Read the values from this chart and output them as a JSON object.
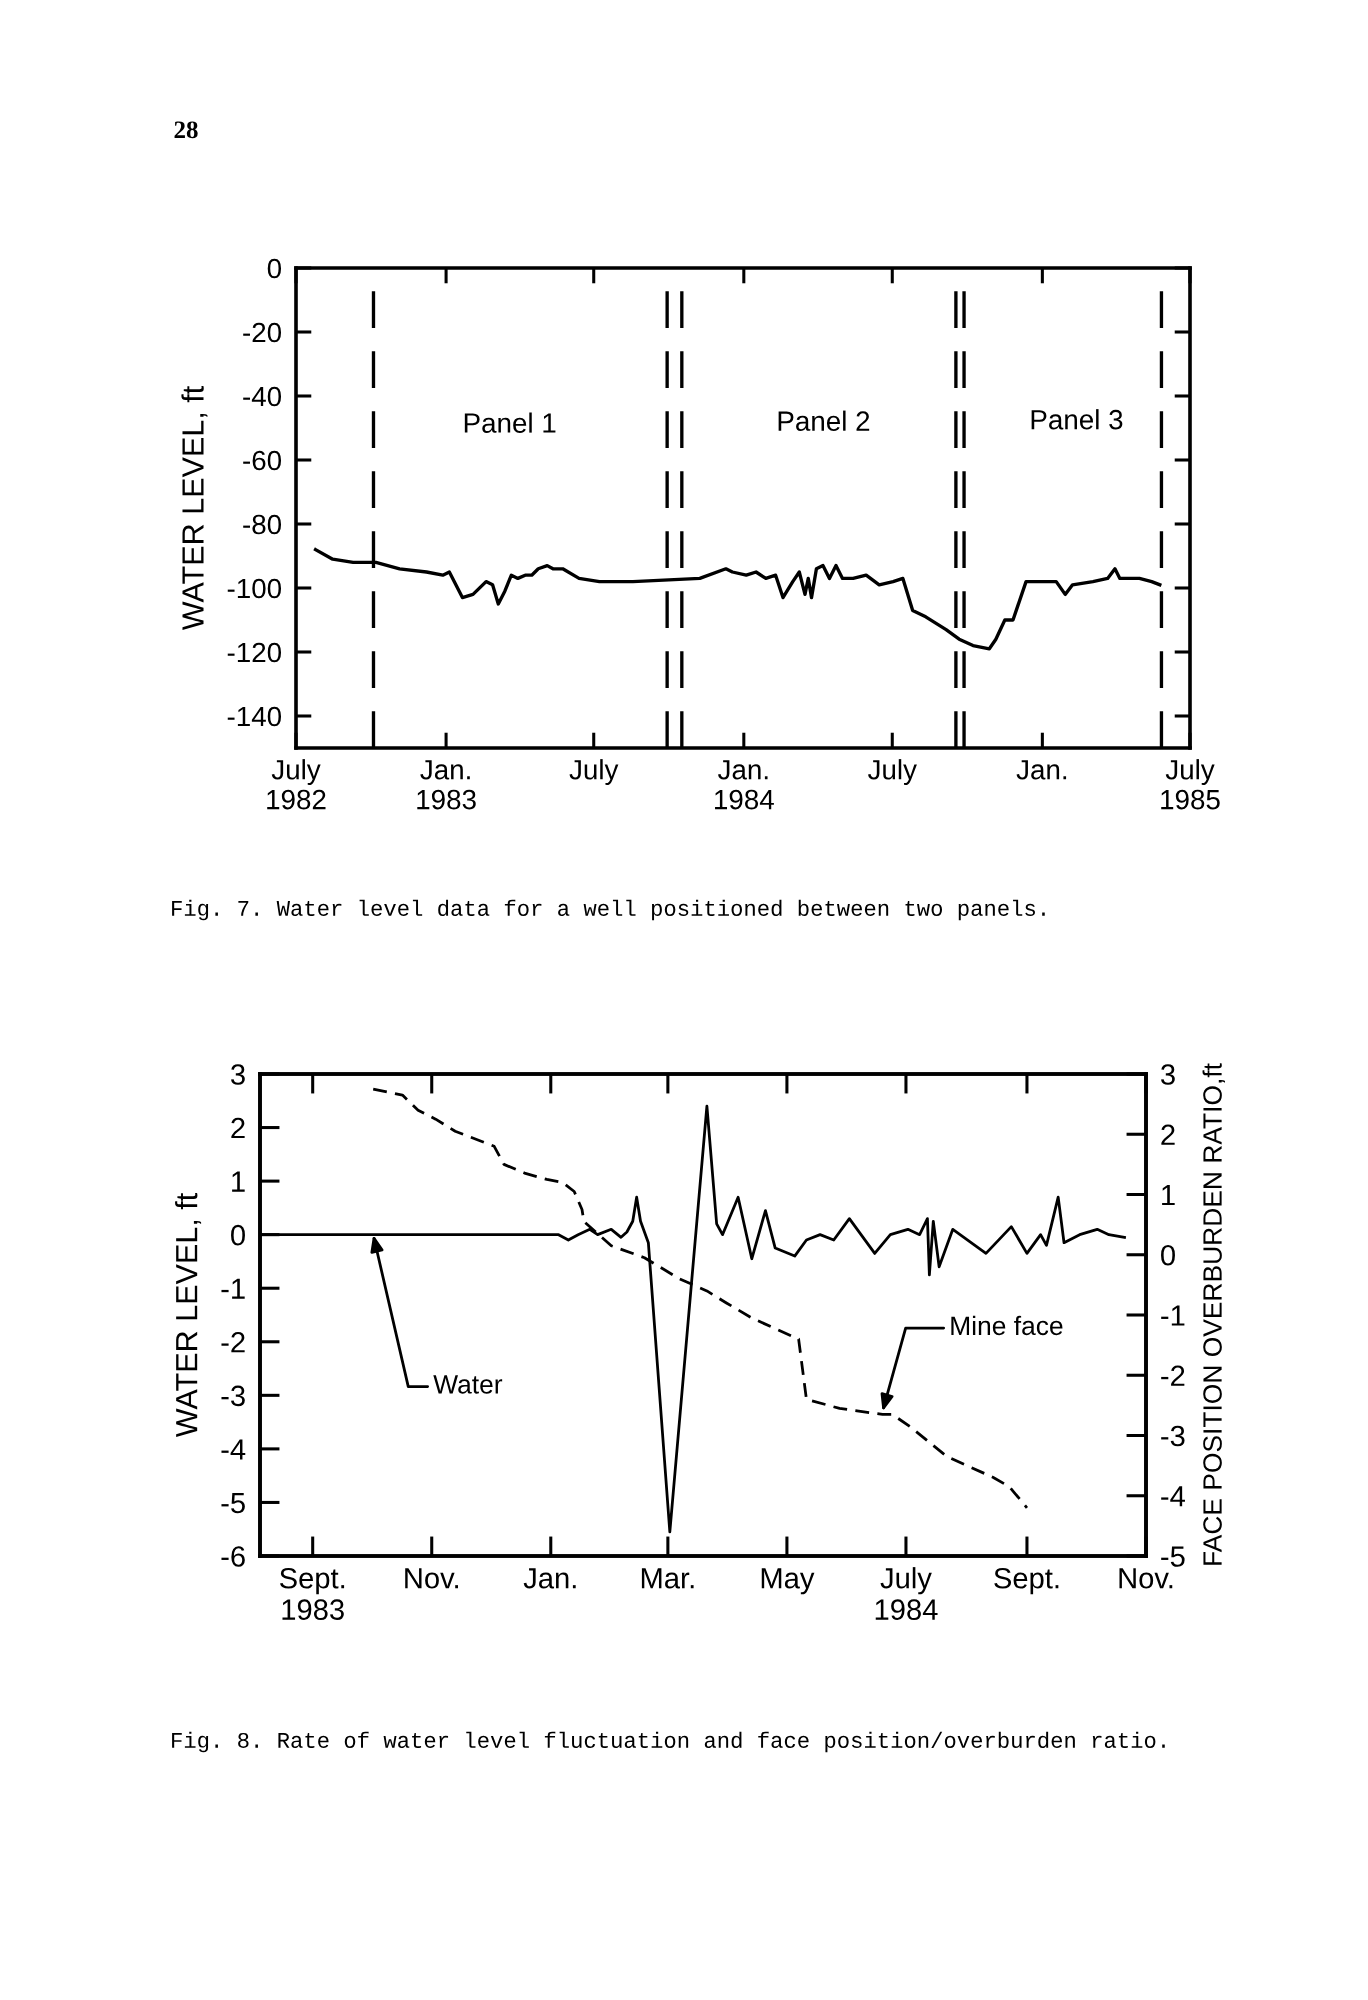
{
  "chart_data": [
    {
      "type": "line",
      "ylabel": "WATER LEVEL, ft",
      "xlim": [
        "1982-07-01",
        "1985-07-01"
      ],
      "xticks": [
        {
          "value": "1982-07-01",
          "label": "July\n1982"
        },
        {
          "value": "1983-01-01",
          "label": "Jan.\n1983"
        },
        {
          "value": "1983-07-01",
          "label": "July"
        },
        {
          "value": "1984-01-01",
          "label": "Jan.\n1984"
        },
        {
          "value": "1984-07-01",
          "label": "July"
        },
        {
          "value": "1985-01-01",
          "label": "Jan."
        },
        {
          "value": "1985-07-01",
          "label": "July\n1985"
        }
      ],
      "ylim": [
        -150,
        0
      ],
      "yticks": [
        0,
        -20,
        -40,
        -60,
        -80,
        -100,
        -120,
        -140
      ],
      "series": [
        {
          "color": "#000000",
          "line_style": "solid",
          "x": [
            "1982-07-25",
            "1982-08-15",
            "1982-09-09",
            "1982-10-07",
            "1982-11-05",
            "1982-12-08",
            "1982-12-28",
            "1983-01-05",
            "1983-01-21",
            "1983-02-03",
            "1983-02-19",
            "1983-02-27",
            "1983-03-06",
            "1983-03-14",
            "1983-03-22",
            "1983-03-30",
            "1983-04-08",
            "1983-04-16",
            "1983-04-24",
            "1983-05-05",
            "1983-05-12",
            "1983-05-24",
            "1983-06-13",
            "1983-07-08",
            "1983-08-18",
            "1983-11-08",
            "1983-12-10",
            "1983-12-18",
            "1984-01-04",
            "1984-01-16",
            "1984-01-28",
            "1984-02-09",
            "1984-02-18",
            "1984-03-01",
            "1984-03-09",
            "1984-03-16",
            "1984-03-20",
            "1984-03-24",
            "1984-03-30",
            "1984-04-07",
            "1984-04-15",
            "1984-04-23",
            "1984-05-01",
            "1984-05-14",
            "1984-05-30",
            "1984-06-15",
            "1984-07-02",
            "1984-07-14",
            "1984-07-26",
            "1984-08-11",
            "1984-09-05",
            "1984-09-21",
            "1984-10-08",
            "1984-10-28",
            "1984-11-05",
            "1984-11-16",
            "1984-11-26",
            "1984-11-30",
            "1984-12-12",
            "1984-12-20",
            "1985-01-18",
            "1985-01-29",
            "1985-02-07",
            "1985-03-04",
            "1985-03-22",
            "1985-03-31",
            "1985-04-06",
            "1985-04-18",
            "1985-04-30",
            "1985-05-15",
            "1985-05-25"
          ],
          "values": [
            -88,
            -91,
            -92,
            -92,
            -94,
            -95,
            -96,
            -95,
            -103,
            -102,
            -98,
            -99,
            -105,
            -101,
            -96,
            -97,
            -96,
            -96,
            -94,
            -93,
            -94,
            -94,
            -97,
            -98,
            -98,
            -97,
            -94,
            -95,
            -96,
            -95,
            -97,
            -96,
            -103,
            -98,
            -95,
            -102,
            -97,
            -103,
            -94,
            -93,
            -97,
            -93,
            -97,
            -97,
            -96,
            -99,
            -98,
            -97,
            -107,
            -109,
            -113,
            -116,
            -118,
            -119,
            -116,
            -110,
            -110,
            -107,
            -98,
            -98,
            -98,
            -102,
            -99,
            -98,
            -97,
            -94,
            -97,
            -97,
            -97,
            -98,
            -99
          ]
        }
      ],
      "ref_lines": [
        {
          "axis": "x",
          "value": "1982-10-04",
          "line_style": "dashed",
          "color": "#000000"
        },
        {
          "axis": "x",
          "value": "1983-09-29",
          "line_style": "dashed",
          "color": "#000000"
        },
        {
          "axis": "x",
          "value": "1983-10-17",
          "line_style": "dashed",
          "color": "#000000"
        },
        {
          "axis": "x",
          "value": "1984-09-17",
          "line_style": "dashed",
          "color": "#000000"
        },
        {
          "axis": "x",
          "value": "1984-09-27",
          "line_style": "dashed",
          "color": "#000000"
        },
        {
          "axis": "x",
          "value": "1985-05-27",
          "line_style": "dashed",
          "color": "#000000"
        }
      ],
      "annotations": [
        "28",
        "Panel 1",
        "Panel 2",
        "Panel 3",
        "Fig. 7. Water level data for a well positioned between two panels."
      ]
    },
    {
      "type": "line",
      "ylabel": "WATER LEVEL, ft",
      "y2label": "FACE POSITION OVERBURDEN RATIO,ft",
      "xlim": [
        "1983-08-05",
        "1984-11-01"
      ],
      "xticks": [
        {
          "value": "1983-09-01",
          "label": "Sept.\n1983"
        },
        {
          "value": "1983-11-01",
          "label": "Nov."
        },
        {
          "value": "1984-01-01",
          "label": "Jan."
        },
        {
          "value": "1984-03-01",
          "label": "Mar."
        },
        {
          "value": "1984-05-01",
          "label": "May"
        },
        {
          "value": "1984-07-01",
          "label": "July\n1984"
        },
        {
          "value": "1984-09-01",
          "label": "Sept."
        },
        {
          "value": "1984-11-01",
          "label": "Nov."
        }
      ],
      "ylim": [
        -6,
        3
      ],
      "yticks": [
        3,
        2,
        1,
        0,
        -1,
        -2,
        -3,
        -4,
        -5,
        -6
      ],
      "y2lim": [
        -5,
        3
      ],
      "y2ticks": [
        3,
        2,
        1,
        0,
        -1,
        -2,
        -3,
        -4,
        -5
      ],
      "series": [
        {
          "color": "#000000",
          "line_style": "solid",
          "x": [
            "1983-08-05",
            "1983-11-15",
            "1984-01-05",
            "1984-01-10",
            "1984-01-15",
            "1984-01-21",
            "1984-01-25",
            "1984-02-01",
            "1984-02-06",
            "1984-02-09",
            "1984-02-12",
            "1984-02-14",
            "1984-02-16",
            "1984-02-20",
            "1984-03-02",
            "1984-03-21",
            "1984-03-26",
            "1984-03-29",
            "1984-04-06",
            "1984-04-13",
            "1984-04-20",
            "1984-04-25",
            "1984-05-05",
            "1984-05-11",
            "1984-05-18",
            "1984-05-25",
            "1984-06-02",
            "1984-06-15",
            "1984-06-23",
            "1984-07-02",
            "1984-07-08",
            "1984-07-12",
            "1984-07-13",
            "1984-07-15",
            "1984-07-18",
            "1984-07-25",
            "1984-08-11",
            "1984-08-24",
            "1984-09-01",
            "1984-09-08",
            "1984-09-11",
            "1984-09-17",
            "1984-09-20",
            "1984-09-28",
            "1984-10-07",
            "1984-10-13",
            "1984-10-21"
          ],
          "values": [
            0,
            0,
            0,
            -0.1,
            0,
            0.1,
            0,
            0.1,
            -0.05,
            0.05,
            0.25,
            0.7,
            0.25,
            -0.15,
            -5.55,
            2.4,
            0.2,
            0,
            0.7,
            -0.45,
            0.45,
            -0.25,
            -0.4,
            -0.1,
            0,
            -0.1,
            0.3,
            -0.35,
            0,
            0.1,
            0,
            0.3,
            -0.75,
            0.25,
            -0.6,
            0.1,
            -0.35,
            0.15,
            -0.35,
            0,
            -0.2,
            0.7,
            -0.15,
            0,
            0.1,
            0,
            -0.05
          ]
        },
        {
          "color": "#000000",
          "line_style": "dashed",
          "axis": "y2",
          "x": [
            "1983-10-02",
            "1983-10-17",
            "1983-10-25",
            "1983-11-03",
            "1983-11-13",
            "1983-11-25",
            "1983-12-03",
            "1983-12-08",
            "1983-12-19",
            "1983-12-30",
            "1984-01-07",
            "1984-01-13",
            "1984-01-17",
            "1984-01-18",
            "1984-02-01",
            "1984-02-18",
            "1984-03-07",
            "1984-03-21",
            "1984-03-31",
            "1984-04-13",
            "1984-05-07",
            "1984-05-11",
            "1984-05-28",
            "1984-06-19",
            "1984-06-24",
            "1984-07-03",
            "1984-07-22",
            "1984-08-15",
            "1984-08-23",
            "1984-09-01"
          ],
          "values": [
            2.75,
            2.65,
            2.4,
            2.25,
            2.05,
            1.9,
            1.8,
            1.5,
            1.35,
            1.25,
            1.2,
            1.05,
            0.75,
            0.55,
            0.15,
            -0.05,
            -0.4,
            -0.6,
            -0.8,
            -1.05,
            -1.4,
            -2.4,
            -2.55,
            -2.65,
            -2.65,
            -2.85,
            -3.35,
            -3.7,
            -3.85,
            -4.2
          ]
        }
      ],
      "annotations": [
        {
          "text": "Water",
          "x": "1983-10-02",
          "y": 0
        },
        {
          "text": "Mine face",
          "x": "1984-06-19",
          "y": -3.3
        },
        "Fig. 8. Rate of water level fluctuation and face position/overburden ratio."
      ]
    }
  ]
}
